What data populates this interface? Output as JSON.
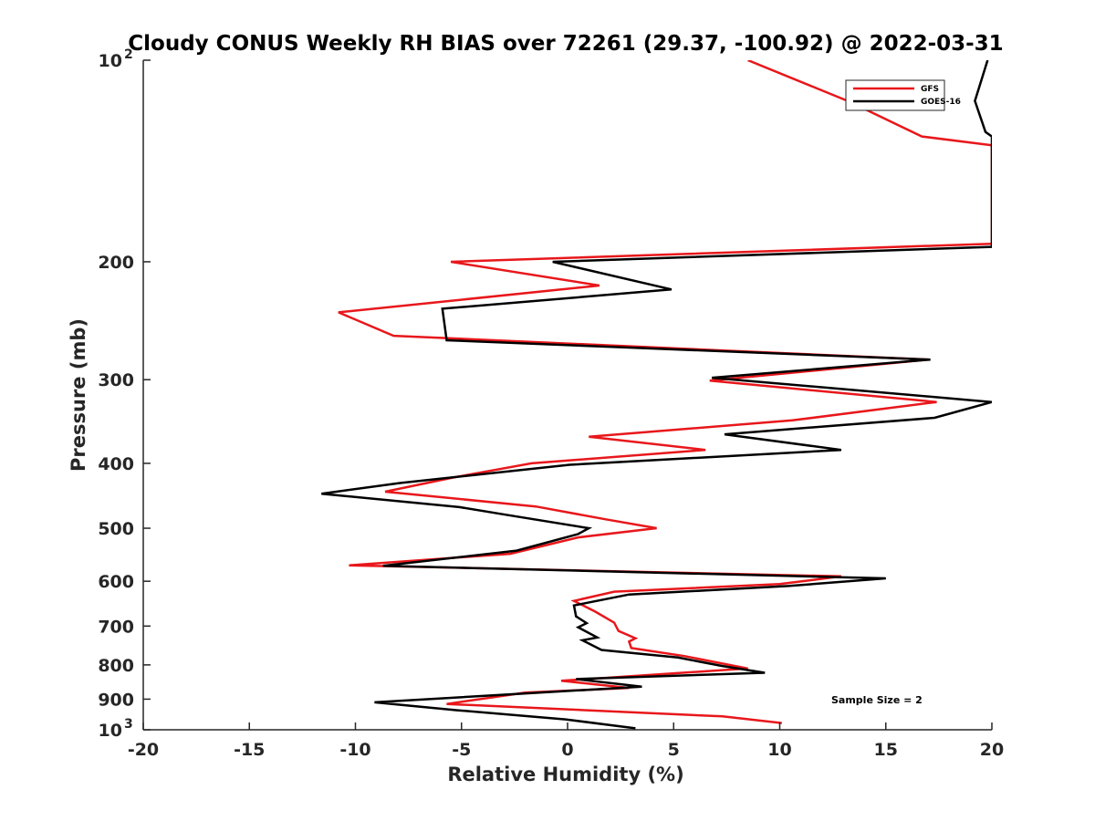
{
  "chart_data": {
    "type": "line",
    "title": "Cloudy CONUS Weekly RH BIAS over 72261 (29.37, -100.92) @ 2022-03-31",
    "xlabel": "Relative Humidity (%)",
    "ylabel": "Pressure (mb)",
    "xlim": [
      -20,
      20
    ],
    "ylim": [
      100,
      1000
    ],
    "y_scale": "log",
    "y_reversed": true,
    "x_ticks": [
      -20,
      -15,
      -10,
      -5,
      0,
      5,
      10,
      15,
      20
    ],
    "x_tick_labels": [
      "-20",
      "-15",
      "-10",
      "-5",
      "0",
      "5",
      "10",
      "15",
      "20"
    ],
    "y_ticks": [
      100,
      200,
      300,
      400,
      500,
      600,
      700,
      800,
      900,
      1000
    ],
    "y_tick_labels": [
      {
        "base": "10",
        "exp": "2"
      },
      {
        "base": "200",
        "exp": ""
      },
      {
        "base": "300",
        "exp": ""
      },
      {
        "base": "400",
        "exp": ""
      },
      {
        "base": "500",
        "exp": ""
      },
      {
        "base": "600",
        "exp": ""
      },
      {
        "base": "700",
        "exp": ""
      },
      {
        "base": "800",
        "exp": ""
      },
      {
        "base": "900",
        "exp": ""
      },
      {
        "base": "10",
        "exp": "3"
      }
    ],
    "grid": false,
    "legend": {
      "position": "top-right",
      "entries": [
        "GFS",
        "GOES-16"
      ]
    },
    "annotation": "Sample Size = 2",
    "series": [
      {
        "name": "GFS",
        "color": "#e8171b",
        "points": [
          [
            8.5,
            100
          ],
          [
            13.2,
            115
          ],
          [
            16.7,
            130
          ],
          [
            20,
            134
          ],
          [
            20,
            188
          ],
          [
            -5.5,
            200
          ],
          [
            1.5,
            217
          ],
          [
            -10.8,
            238
          ],
          [
            -8.2,
            258
          ],
          [
            17.0,
            280
          ],
          [
            6.7,
            301
          ],
          [
            17.4,
            324
          ],
          [
            10.6,
            345
          ],
          [
            1.0,
            365
          ],
          [
            6.5,
            382
          ],
          [
            -1.7,
            400
          ],
          [
            -5.4,
            420
          ],
          [
            -8.6,
            441
          ],
          [
            -1.5,
            464
          ],
          [
            1.8,
            485
          ],
          [
            4.2,
            500
          ],
          [
            0.5,
            516
          ],
          [
            -2.7,
            546
          ],
          [
            -10.3,
            568
          ],
          [
            12.9,
            590
          ],
          [
            10.0,
            606
          ],
          [
            2.2,
            622
          ],
          [
            0.3,
            642
          ],
          [
            1.3,
            666
          ],
          [
            2.2,
            692
          ],
          [
            2.4,
            712
          ],
          [
            3.2,
            730
          ],
          [
            2.9,
            738
          ],
          [
            3.0,
            755
          ],
          [
            5.5,
            776
          ],
          [
            8.5,
            810
          ],
          [
            -0.3,
            845
          ],
          [
            2.9,
            866
          ],
          [
            -2.0,
            880
          ],
          [
            -5.7,
            915
          ],
          [
            7.3,
            955
          ],
          [
            10.1,
            977
          ]
        ]
      },
      {
        "name": "GOES-16",
        "color": "#000000",
        "points": [
          [
            19.8,
            100
          ],
          [
            19.2,
            115
          ],
          [
            19.7,
            128
          ],
          [
            20,
            130
          ],
          [
            20,
            190
          ],
          [
            -0.7,
            200
          ],
          [
            4.9,
            220
          ],
          [
            -5.9,
            235
          ],
          [
            -5.7,
            262
          ],
          [
            17.1,
            280
          ],
          [
            6.8,
            298
          ],
          [
            20,
            324
          ],
          [
            17.3,
            342
          ],
          [
            7.4,
            362
          ],
          [
            12.9,
            382
          ],
          [
            0.1,
            402
          ],
          [
            -7.9,
            428
          ],
          [
            -11.6,
            444
          ],
          [
            -5.1,
            465
          ],
          [
            -2.8,
            478
          ],
          [
            1.0,
            500
          ],
          [
            0.5,
            510
          ],
          [
            -2.4,
            540
          ],
          [
            -8.7,
            569
          ],
          [
            15.0,
            594
          ],
          [
            10.4,
            610
          ],
          [
            2.9,
            628
          ],
          [
            0.3,
            652
          ],
          [
            0.4,
            677
          ],
          [
            0.9,
            693
          ],
          [
            0.5,
            703
          ],
          [
            1.4,
            728
          ],
          [
            0.7,
            735
          ],
          [
            1.6,
            760
          ],
          [
            5.2,
            780
          ],
          [
            7.3,
            803
          ],
          [
            9.3,
            822
          ],
          [
            0.4,
            840
          ],
          [
            3.5,
            862
          ],
          [
            -9.1,
            910
          ],
          [
            -5.2,
            935
          ],
          [
            -0.1,
            965
          ],
          [
            3.2,
            995
          ]
        ]
      }
    ]
  }
}
